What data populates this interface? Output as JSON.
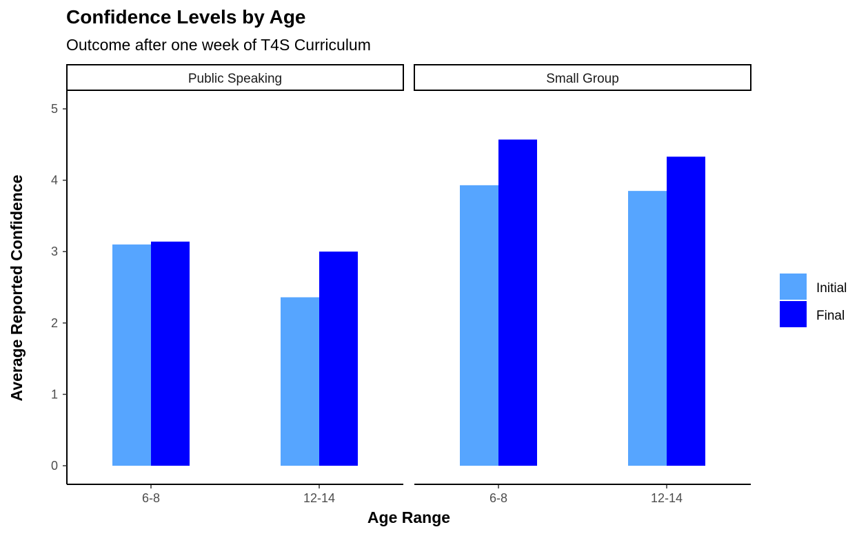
{
  "chart_data": {
    "type": "bar",
    "title": "Confidence Levels by Age",
    "subtitle": "Outcome after one week of T4S Curriculum",
    "xlabel": "Age Range",
    "ylabel": "Average Reported Confidence",
    "ylim": [
      0,
      5
    ],
    "yticks": [
      "0",
      "1",
      "2",
      "3",
      "4",
      "5"
    ],
    "grid": false,
    "legend_position": "right",
    "categories": [
      "6-8",
      "12-14"
    ],
    "series_colors": [
      "#56a5ff",
      "#0000ff"
    ],
    "legend": [
      {
        "label": "Initial",
        "color": "#56a5ff"
      },
      {
        "label": "Final",
        "color": "#0000ff"
      }
    ],
    "facets": [
      {
        "name": "Public Speaking",
        "series": [
          {
            "name": "Initial",
            "values": [
              3.1,
              2.36
            ]
          },
          {
            "name": "Final",
            "values": [
              3.14,
              3.0
            ]
          }
        ]
      },
      {
        "name": "Small Group",
        "series": [
          {
            "name": "Initial",
            "values": [
              3.93,
              3.85
            ]
          },
          {
            "name": "Final",
            "values": [
              4.57,
              4.33
            ]
          }
        ]
      }
    ]
  }
}
